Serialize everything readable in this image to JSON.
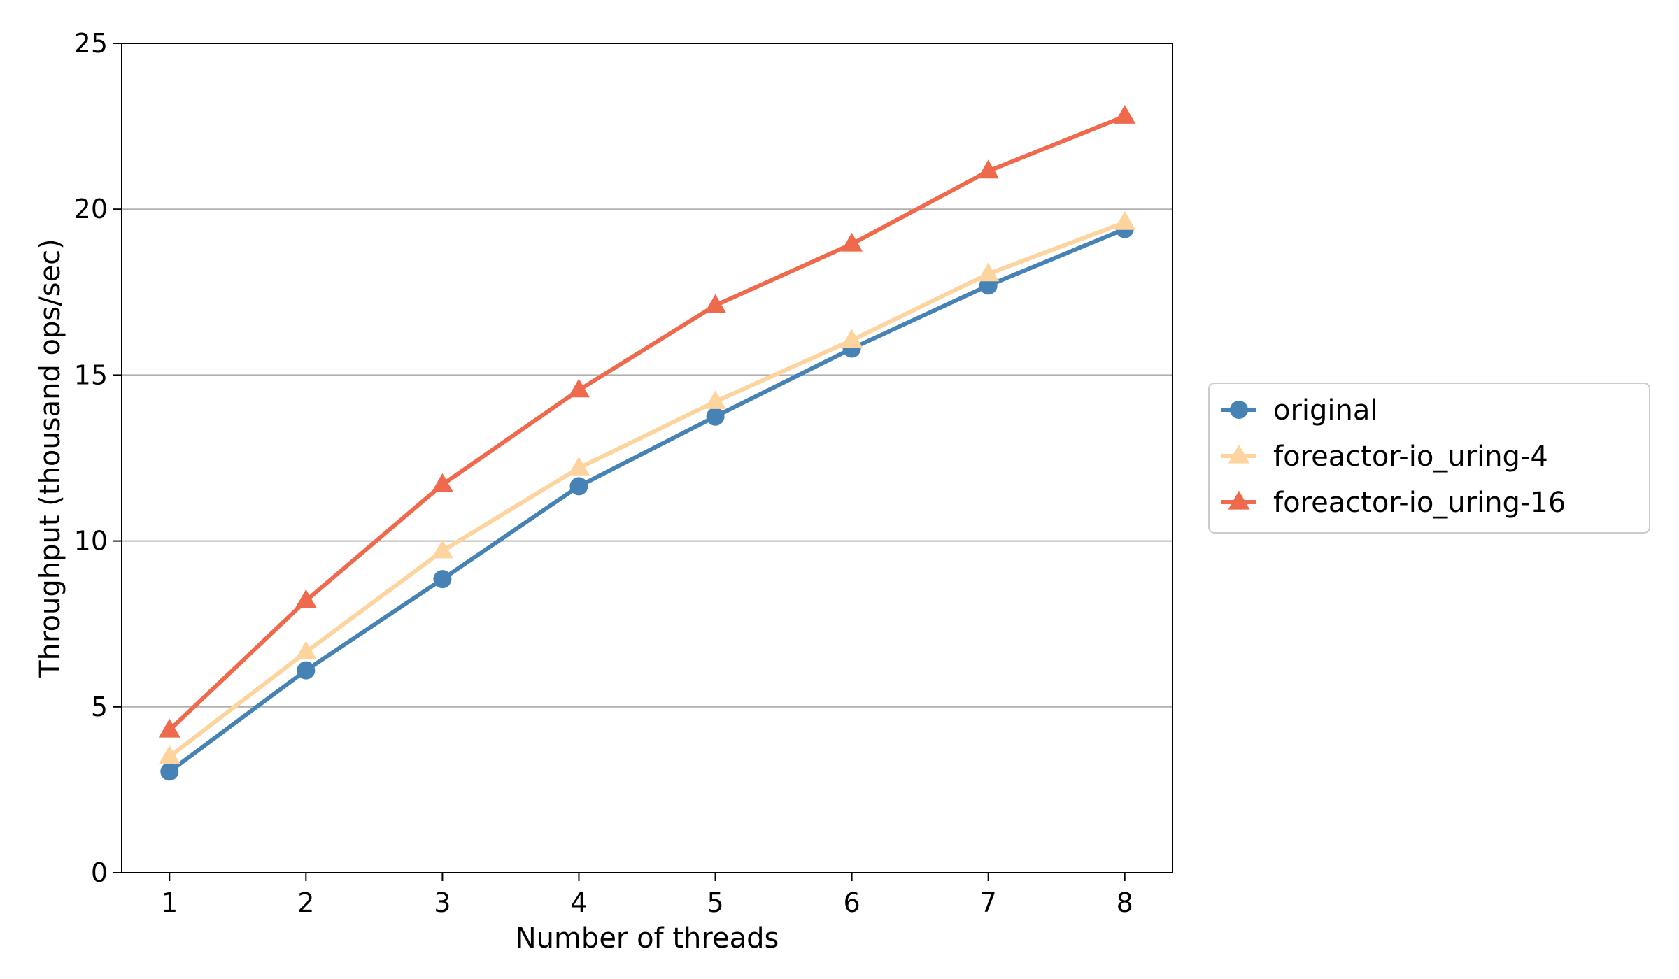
{
  "chart_data": {
    "type": "line",
    "title": "",
    "xlabel": "Number of threads",
    "ylabel": "Throughput (thousand ops/sec)",
    "x": [
      1,
      2,
      3,
      4,
      5,
      6,
      7,
      8
    ],
    "xlim": [
      0.65,
      8.35
    ],
    "ylim": [
      0,
      25
    ],
    "xticks": [
      "1",
      "2",
      "3",
      "4",
      "5",
      "6",
      "7",
      "8"
    ],
    "yticks": [
      "0",
      "5",
      "10",
      "15",
      "20",
      "25"
    ],
    "grid": "horizontal",
    "legend_position": "right-outside",
    "series": [
      {
        "name": "original",
        "color": "#4682b4",
        "marker": "circle",
        "values": [
          3.05,
          6.1,
          8.85,
          11.65,
          13.75,
          15.8,
          17.7,
          19.4
        ]
      },
      {
        "name": "foreactor-io_uring-4",
        "color": "#fdd49e",
        "marker": "triangle",
        "values": [
          3.5,
          6.65,
          9.7,
          12.2,
          14.2,
          16.05,
          18.05,
          19.6
        ]
      },
      {
        "name": "foreactor-io_uring-16",
        "color": "#ef6a4c",
        "marker": "triangle",
        "values": [
          4.3,
          8.2,
          11.7,
          14.55,
          17.1,
          18.95,
          21.15,
          22.8
        ]
      }
    ]
  }
}
